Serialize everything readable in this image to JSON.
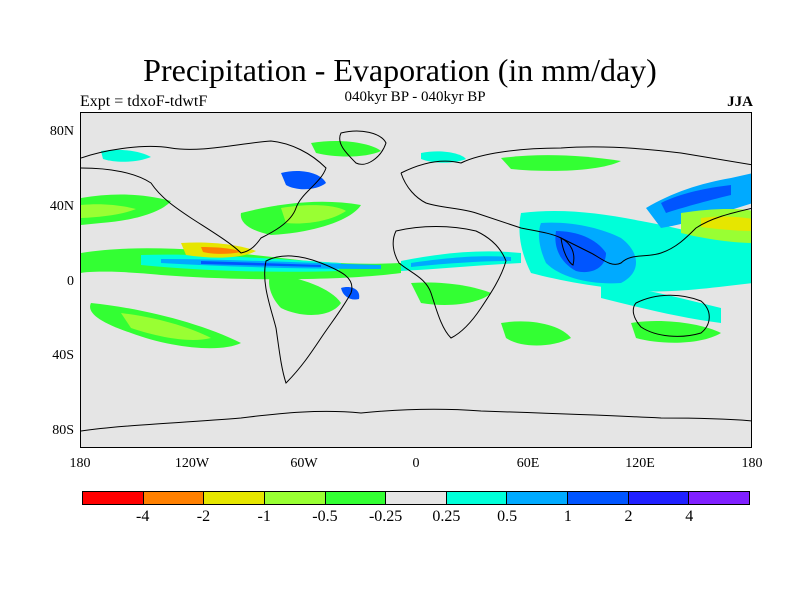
{
  "title": "Precipitation - Evaporation (in mm/day)",
  "subtitle": "040kyr BP - 040kyr BP",
  "left_label": "Expt = tdxoF-tdwtF",
  "right_label": "JJA",
  "map": {
    "background": "#e5e5e5",
    "lat_labels": [
      "80N",
      "40N",
      "0",
      "40S",
      "80S"
    ],
    "lon_labels": [
      "180",
      "120W",
      "60W",
      "0",
      "60E",
      "120E",
      "180"
    ]
  },
  "colorbar": {
    "colors": [
      "#ff0000",
      "#ff8000",
      "#e6e600",
      "#99ff33",
      "#33ff33",
      "#e5e5e5",
      "#00ffd9",
      "#00aaff",
      "#0055ff",
      "#2020ff",
      "#8020ff"
    ],
    "labels": [
      "-4",
      "-2",
      "-1",
      "-0.5",
      "-0.25",
      "0.25",
      "0.5",
      "1",
      "2",
      "4"
    ]
  }
}
